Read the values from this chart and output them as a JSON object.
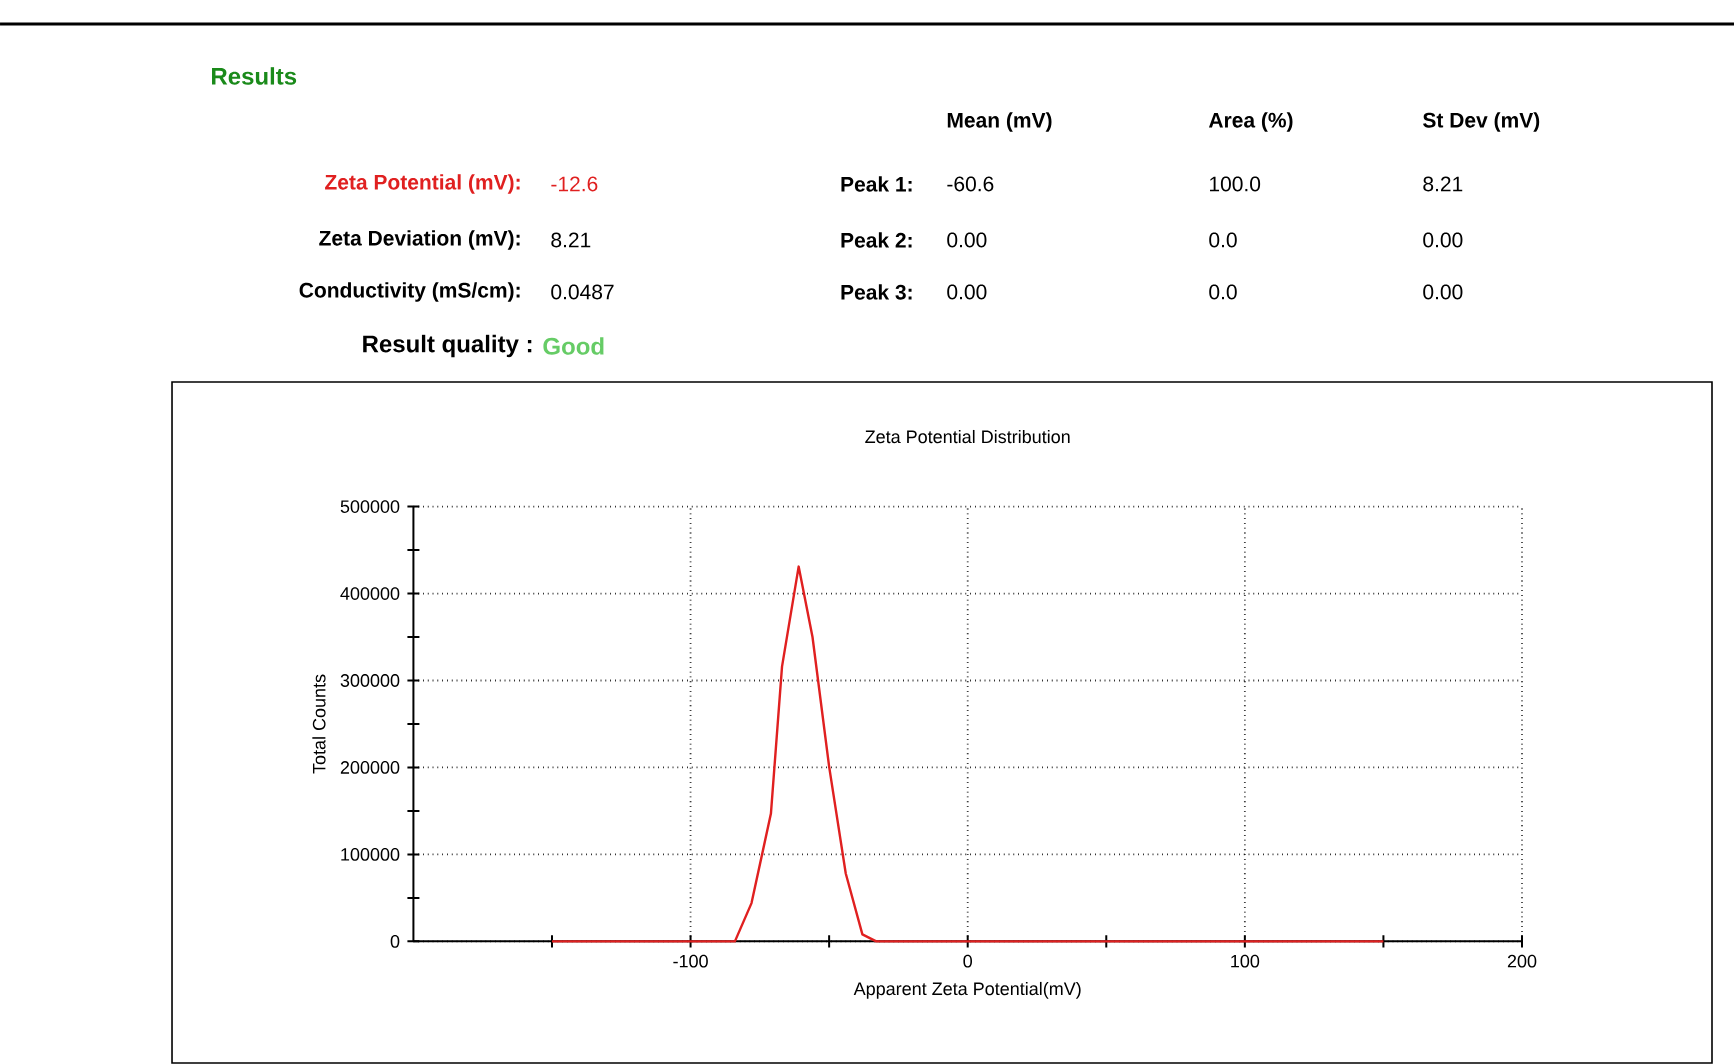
{
  "chart_data": {
    "type": "line",
    "title": "Zeta Potential Distribution",
    "xlabel": "Apparent Zeta Potential(mV)",
    "ylabel": "Total Counts",
    "xlim": [
      -200,
      200
    ],
    "xticks": [
      {
        "value": -150,
        "label": null
      },
      -100,
      {
        "value": -50,
        "label": null
      },
      0,
      {
        "value": 50,
        "label": null
      },
      100,
      {
        "value": 150,
        "label": null
      },
      200
    ],
    "ylim": [
      0,
      500000
    ],
    "yticks": [
      0,
      {
        "value": 50000,
        "label": null
      },
      100000,
      {
        "value": 150000,
        "label": null
      },
      200000,
      {
        "value": 250000,
        "label": null
      },
      300000,
      {
        "value": 350000,
        "label": null
      },
      400000,
      {
        "value": 450000,
        "label": null
      },
      500000
    ],
    "grid": true,
    "marker": "none",
    "line_style": "solid",
    "series": [
      {
        "color": "#e02020",
        "x": [
          -150,
          -84,
          -78,
          -71,
          -67,
          -61,
          -56,
          -50,
          -44,
          -38,
          -33,
          150
        ],
        "values": [
          0,
          0,
          44000,
          147000,
          316000,
          431000,
          350000,
          201000,
          78000,
          8000,
          0,
          0
        ]
      }
    ],
    "annotations": [
      "Results",
      "Mean (mV)",
      "Area (%)",
      "St Dev (mV)",
      "Zeta Potential (mV):",
      "-12.6",
      "Peak 1:",
      "-60.6",
      "100.0",
      "8.21",
      "Zeta Deviation (mV):",
      "8.21",
      "Peak 2:",
      "0.00",
      "0.0",
      "0.00",
      "Conductivity (mS/cm):",
      "0.0487",
      "Peak 3:",
      "0.00",
      "0.0",
      "0.00",
      "Result quality :",
      "Good"
    ]
  }
}
